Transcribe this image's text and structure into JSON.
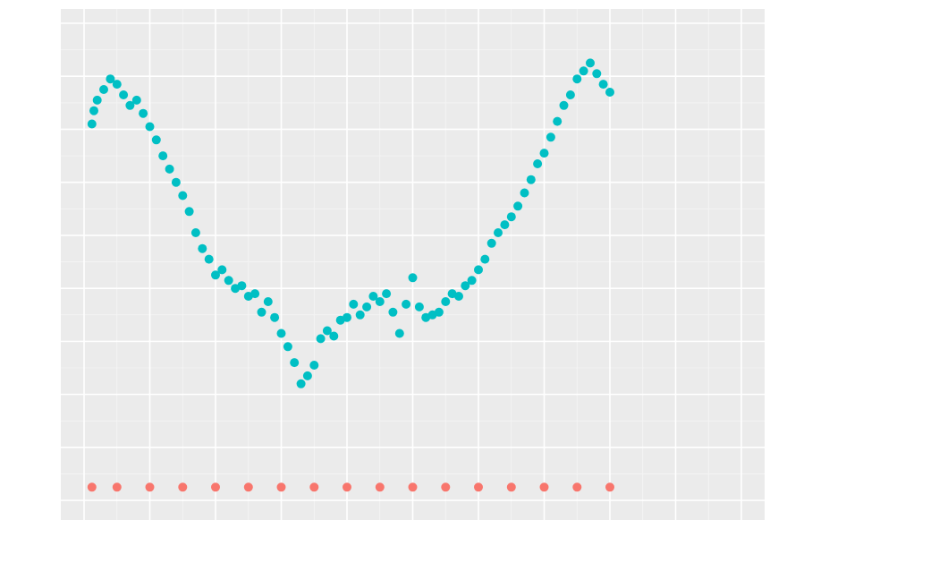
{
  "chart_data": {
    "type": "scatter",
    "xlim": [
      0,
      1.0
    ],
    "ylim": [
      -0.1,
      9.0
    ],
    "grid": true,
    "x_major_ticks": [
      0.0,
      0.1,
      0.2,
      0.3,
      0.4,
      0.5,
      0.6,
      0.7,
      0.8,
      0.9,
      1.0
    ],
    "y_major_ticks": [
      0,
      1,
      2,
      3,
      4,
      5,
      6,
      7,
      8,
      9
    ],
    "series": [
      {
        "color": "#00BFC4",
        "values": [
          [
            0.012,
            7.1
          ],
          [
            0.015,
            7.35
          ],
          [
            0.02,
            7.55
          ],
          [
            0.03,
            7.75
          ],
          [
            0.04,
            7.95
          ],
          [
            0.05,
            7.85
          ],
          [
            0.06,
            7.65
          ],
          [
            0.07,
            7.45
          ],
          [
            0.08,
            7.55
          ],
          [
            0.09,
            7.3
          ],
          [
            0.1,
            7.05
          ],
          [
            0.11,
            6.8
          ],
          [
            0.12,
            6.5
          ],
          [
            0.13,
            6.25
          ],
          [
            0.14,
            6.0
          ],
          [
            0.15,
            5.75
          ],
          [
            0.16,
            5.45
          ],
          [
            0.17,
            5.05
          ],
          [
            0.18,
            4.75
          ],
          [
            0.19,
            4.55
          ],
          [
            0.2,
            4.25
          ],
          [
            0.21,
            4.35
          ],
          [
            0.22,
            4.15
          ],
          [
            0.23,
            4.0
          ],
          [
            0.24,
            4.05
          ],
          [
            0.25,
            3.85
          ],
          [
            0.26,
            3.9
          ],
          [
            0.27,
            3.55
          ],
          [
            0.28,
            3.75
          ],
          [
            0.29,
            3.45
          ],
          [
            0.3,
            3.15
          ],
          [
            0.31,
            2.9
          ],
          [
            0.32,
            2.6
          ],
          [
            0.33,
            2.2
          ],
          [
            0.34,
            2.35
          ],
          [
            0.35,
            2.55
          ],
          [
            0.36,
            3.05
          ],
          [
            0.37,
            3.2
          ],
          [
            0.38,
            3.1
          ],
          [
            0.39,
            3.4
          ],
          [
            0.4,
            3.45
          ],
          [
            0.41,
            3.7
          ],
          [
            0.42,
            3.5
          ],
          [
            0.43,
            3.65
          ],
          [
            0.44,
            3.85
          ],
          [
            0.45,
            3.75
          ],
          [
            0.46,
            3.9
          ],
          [
            0.47,
            3.55
          ],
          [
            0.48,
            3.15
          ],
          [
            0.49,
            3.7
          ],
          [
            0.5,
            4.2
          ],
          [
            0.51,
            3.65
          ],
          [
            0.52,
            3.45
          ],
          [
            0.53,
            3.5
          ],
          [
            0.54,
            3.55
          ],
          [
            0.55,
            3.75
          ],
          [
            0.56,
            3.9
          ],
          [
            0.57,
            3.85
          ],
          [
            0.58,
            4.05
          ],
          [
            0.59,
            4.15
          ],
          [
            0.6,
            4.35
          ],
          [
            0.61,
            4.55
          ],
          [
            0.62,
            4.85
          ],
          [
            0.63,
            5.05
          ],
          [
            0.64,
            5.2
          ],
          [
            0.65,
            5.35
          ],
          [
            0.66,
            5.55
          ],
          [
            0.67,
            5.8
          ],
          [
            0.68,
            6.05
          ],
          [
            0.69,
            6.35
          ],
          [
            0.7,
            6.55
          ],
          [
            0.71,
            6.85
          ],
          [
            0.72,
            7.15
          ],
          [
            0.73,
            7.45
          ],
          [
            0.74,
            7.65
          ],
          [
            0.75,
            7.95
          ],
          [
            0.76,
            8.1
          ],
          [
            0.77,
            8.25
          ],
          [
            0.78,
            8.05
          ],
          [
            0.79,
            7.85
          ],
          [
            0.8,
            7.7
          ]
        ]
      },
      {
        "color": "#F8766D",
        "values": [
          [
            0.012,
            0.25
          ],
          [
            0.05,
            0.25
          ],
          [
            0.1,
            0.25
          ],
          [
            0.15,
            0.25
          ],
          [
            0.2,
            0.25
          ],
          [
            0.25,
            0.25
          ],
          [
            0.3,
            0.25
          ],
          [
            0.35,
            0.25
          ],
          [
            0.4,
            0.25
          ],
          [
            0.45,
            0.25
          ],
          [
            0.5,
            0.25
          ],
          [
            0.55,
            0.25
          ],
          [
            0.6,
            0.25
          ],
          [
            0.65,
            0.25
          ],
          [
            0.7,
            0.25
          ],
          [
            0.75,
            0.25
          ],
          [
            0.8,
            0.25
          ]
        ]
      }
    ]
  }
}
